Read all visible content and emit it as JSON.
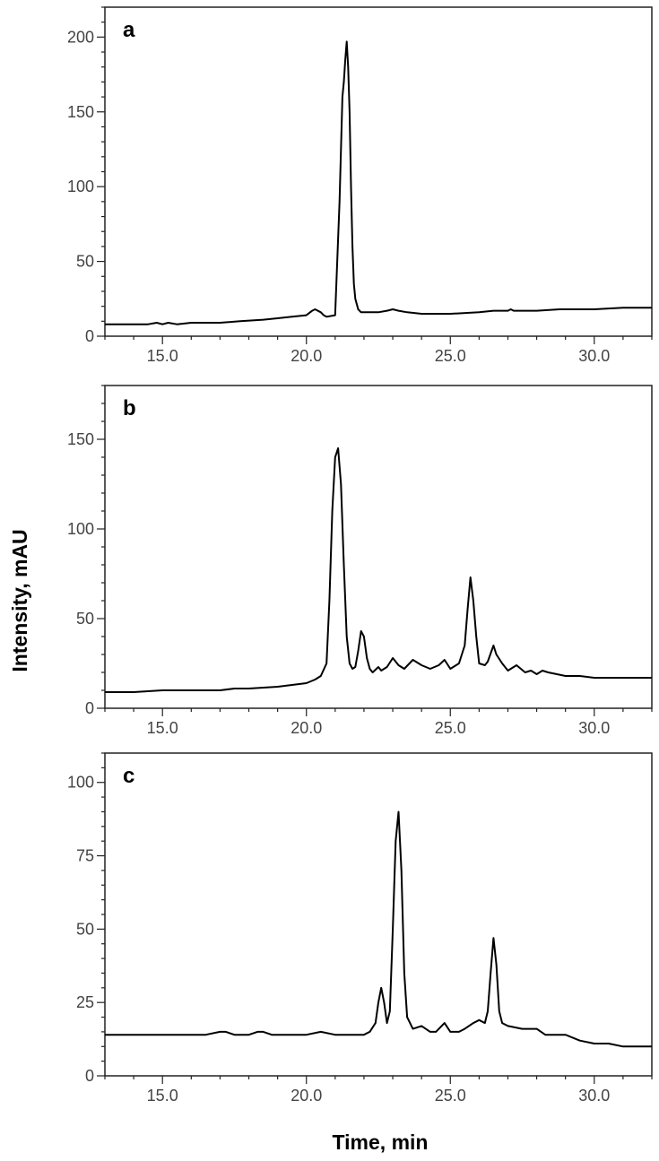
{
  "chart_data": [
    {
      "type": "line",
      "panel_label": "a",
      "xlim": [
        13.0,
        32.0
      ],
      "ylim": [
        0,
        220
      ],
      "x_ticks": [
        15.0,
        20.0,
        25.0,
        30.0
      ],
      "x_tick_labels": [
        "15.0",
        "20.0",
        "25.0",
        "30.0"
      ],
      "y_ticks": [
        0,
        50,
        100,
        150,
        200
      ],
      "y_tick_labels": [
        "0",
        "50",
        "100",
        "150",
        "200"
      ],
      "series": [
        {
          "color": "#000000",
          "x": [
            13.0,
            14.5,
            14.8,
            15.0,
            15.2,
            15.5,
            16.0,
            17.0,
            17.7,
            18.5,
            19.0,
            19.5,
            20.0,
            20.2,
            20.3,
            20.5,
            20.6,
            20.7,
            21.0,
            21.15,
            21.25,
            21.3,
            21.35,
            21.4,
            21.45,
            21.5,
            21.55,
            21.6,
            21.65,
            21.7,
            21.8,
            21.9,
            22.0,
            22.2,
            22.5,
            22.8,
            23.0,
            23.2,
            23.5,
            24.0,
            25.0,
            26.0,
            26.5,
            27.0,
            27.1,
            27.2,
            28.0,
            28.8,
            29.5,
            30.0,
            31.0,
            32.0
          ],
          "y": [
            8,
            8,
            9,
            8,
            9,
            8,
            9,
            9,
            10,
            11,
            12,
            13,
            14,
            17,
            18,
            16,
            14,
            13,
            14,
            90,
            160,
            170,
            185,
            197,
            180,
            150,
            100,
            60,
            35,
            25,
            18,
            16,
            16,
            16,
            16,
            17,
            18,
            17,
            16,
            15,
            15,
            16,
            17,
            17,
            18,
            17,
            17,
            18,
            18,
            18,
            19,
            19
          ]
        }
      ]
    },
    {
      "type": "line",
      "panel_label": "b",
      "xlim": [
        13.0,
        32.0
      ],
      "ylim": [
        0,
        180
      ],
      "x_ticks": [
        15.0,
        20.0,
        25.0,
        30.0
      ],
      "x_tick_labels": [
        "15.0",
        "20.0",
        "25.0",
        "30.0"
      ],
      "y_ticks": [
        0,
        50,
        100,
        150
      ],
      "y_tick_labels": [
        "0",
        "50",
        "100",
        "150"
      ],
      "series": [
        {
          "color": "#000000",
          "x": [
            13.0,
            14.0,
            15.0,
            16.0,
            17.0,
            17.5,
            18.0,
            19.0,
            19.5,
            20.0,
            20.3,
            20.5,
            20.7,
            20.8,
            20.9,
            21.0,
            21.1,
            21.2,
            21.3,
            21.4,
            21.5,
            21.6,
            21.7,
            21.8,
            21.9,
            22.0,
            22.1,
            22.2,
            22.3,
            22.5,
            22.6,
            22.8,
            23.0,
            23.2,
            23.4,
            23.7,
            24.0,
            24.3,
            24.6,
            24.8,
            25.0,
            25.3,
            25.5,
            25.6,
            25.7,
            25.8,
            25.9,
            26.0,
            26.2,
            26.3,
            26.5,
            26.6,
            26.8,
            27.0,
            27.3,
            27.6,
            27.8,
            28.0,
            28.2,
            28.4,
            28.7,
            29.0,
            29.5,
            30.0,
            31.0,
            32.0
          ],
          "y": [
            9,
            9,
            10,
            10,
            10,
            11,
            11,
            12,
            13,
            14,
            16,
            18,
            25,
            60,
            110,
            140,
            145,
            125,
            80,
            40,
            25,
            22,
            23,
            32,
            43,
            40,
            28,
            22,
            20,
            23,
            21,
            23,
            28,
            24,
            22,
            27,
            24,
            22,
            24,
            27,
            22,
            25,
            35,
            55,
            73,
            60,
            40,
            25,
            24,
            26,
            35,
            30,
            25,
            21,
            24,
            20,
            21,
            19,
            21,
            20,
            19,
            18,
            18,
            17,
            17,
            17
          ]
        }
      ]
    },
    {
      "type": "line",
      "panel_label": "c",
      "xlim": [
        13.0,
        32.0
      ],
      "ylim": [
        0,
        110
      ],
      "x_ticks": [
        15.0,
        20.0,
        25.0,
        30.0
      ],
      "x_tick_labels": [
        "15.0",
        "20.0",
        "25.0",
        "30.0"
      ],
      "y_ticks": [
        0,
        25,
        50,
        75,
        100
      ],
      "y_tick_labels": [
        "0",
        "25",
        "50",
        "75",
        "100"
      ],
      "series": [
        {
          "color": "#000000",
          "x": [
            13.0,
            15.0,
            16.0,
            16.5,
            17.0,
            17.2,
            17.5,
            18.0,
            18.3,
            18.5,
            18.8,
            19.0,
            19.5,
            20.0,
            20.5,
            21.0,
            21.5,
            22.0,
            22.2,
            22.4,
            22.5,
            22.6,
            22.7,
            22.8,
            22.9,
            23.0,
            23.1,
            23.2,
            23.3,
            23.4,
            23.5,
            23.7,
            24.0,
            24.3,
            24.5,
            24.8,
            25.0,
            25.3,
            25.5,
            25.8,
            26.0,
            26.2,
            26.3,
            26.4,
            26.5,
            26.6,
            26.7,
            26.8,
            27.0,
            27.5,
            28.0,
            28.3,
            28.5,
            29.0,
            29.5,
            30.0,
            30.5,
            31.0,
            32.0
          ],
          "y": [
            14,
            14,
            14,
            14,
            15,
            15,
            14,
            14,
            15,
            15,
            14,
            14,
            14,
            14,
            15,
            14,
            14,
            14,
            15,
            18,
            25,
            30,
            25,
            18,
            22,
            50,
            80,
            90,
            70,
            35,
            20,
            16,
            17,
            15,
            15,
            18,
            15,
            15,
            16,
            18,
            19,
            18,
            22,
            35,
            47,
            38,
            22,
            18,
            17,
            16,
            16,
            14,
            14,
            14,
            12,
            11,
            11,
            10,
            10
          ]
        }
      ]
    }
  ],
  "axes": {
    "ylabel": "Intensity, mAU",
    "xlabel": "Time, min"
  }
}
